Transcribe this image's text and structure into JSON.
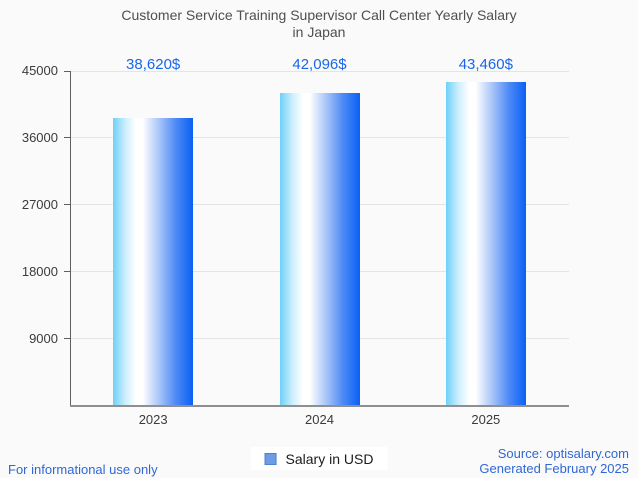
{
  "chart_data": {
    "type": "bar",
    "title": "Customer Service Training Supervisor Call Center Yearly Salary in Japan",
    "title_lines": [
      "Customer Service Training Supervisor Call Center Yearly Salary",
      "in Japan"
    ],
    "categories": [
      "2023",
      "2024",
      "2025"
    ],
    "values": [
      38620,
      42096,
      43460
    ],
    "value_labels": [
      "38,620$",
      "42,096$",
      "43,460$"
    ],
    "series": [
      {
        "name": "Salary in USD",
        "values": [
          38620,
          42096,
          43460
        ]
      }
    ],
    "xlabel": "",
    "ylabel": "",
    "ylim": [
      0,
      45000
    ],
    "yticks": [
      9000,
      18000,
      27000,
      36000,
      45000
    ],
    "grid": true,
    "legend_position": "bottom"
  },
  "legend": {
    "label": "Salary in USD"
  },
  "footer": {
    "disclaimer": "For informational use only",
    "source": "Source: optisalary.com",
    "generated": "Generated February 2025"
  },
  "colors": {
    "background": "#fafafa",
    "title_text": "#4f4f4f",
    "axis_text": "#3b3b3b",
    "axis_line": "#5f5f5f",
    "baseline": "#8f8f8f",
    "gridline": "#e4e4e4",
    "value_label": "#1a66e8",
    "footer_text": "#2f68d5",
    "bar_gradient_left": "#6fd0f8",
    "bar_gradient_mid": "#ffffff",
    "bar_gradient_right": "#0a61f4",
    "legend_swatch": "#6d9ce4",
    "legend_swatch_border": "#4e81cf"
  }
}
